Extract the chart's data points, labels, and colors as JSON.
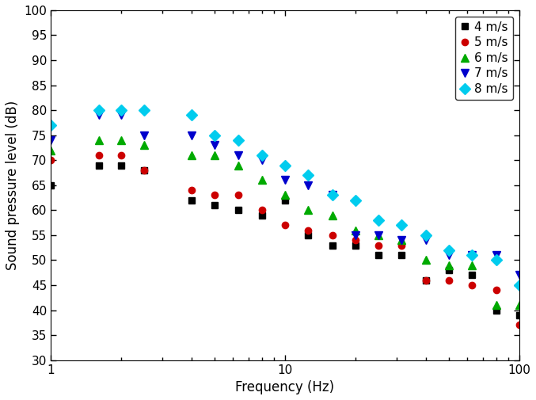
{
  "xlabel": "Frequency (Hz)",
  "ylabel": "Sound pressure level (dB)",
  "xlim": [
    1,
    100
  ],
  "ylim": [
    30,
    100
  ],
  "yticks": [
    30,
    35,
    40,
    45,
    50,
    55,
    60,
    65,
    70,
    75,
    80,
    85,
    90,
    95,
    100
  ],
  "series": [
    {
      "label": "4 m/s",
      "color": "#000000",
      "marker": "s",
      "markersize": 6,
      "freq": [
        1,
        1.6,
        2,
        2.5,
        4,
        5,
        6.3,
        8,
        10,
        12.5,
        16,
        20,
        25,
        31.5,
        40,
        50,
        63,
        80,
        100
      ],
      "spl": [
        65,
        69,
        69,
        68,
        62,
        61,
        60,
        59,
        62,
        55,
        53,
        53,
        51,
        51,
        46,
        48,
        47,
        40,
        39
      ]
    },
    {
      "label": "5 m/s",
      "color": "#cc0000",
      "marker": "o",
      "markersize": 6,
      "freq": [
        1,
        1.6,
        2,
        2.5,
        4,
        5,
        6.3,
        8,
        10,
        12.5,
        16,
        20,
        25,
        31.5,
        40,
        50,
        63,
        80,
        100
      ],
      "spl": [
        70,
        71,
        71,
        68,
        64,
        63,
        63,
        60,
        57,
        56,
        55,
        54,
        53,
        53,
        46,
        46,
        45,
        44,
        37
      ]
    },
    {
      "label": "6 m/s",
      "color": "#00aa00",
      "marker": "^",
      "markersize": 7,
      "freq": [
        1,
        1.6,
        2,
        2.5,
        4,
        5,
        6.3,
        8,
        10,
        12.5,
        16,
        20,
        25,
        31.5,
        40,
        50,
        63,
        80,
        100
      ],
      "spl": [
        72,
        74,
        74,
        73,
        71,
        71,
        69,
        66,
        63,
        60,
        59,
        56,
        55,
        54,
        50,
        49,
        49,
        41,
        41
      ]
    },
    {
      "label": "7 m/s",
      "color": "#0000cc",
      "marker": "v",
      "markersize": 7,
      "freq": [
        1,
        1.6,
        2,
        2.5,
        4,
        5,
        6.3,
        8,
        10,
        12.5,
        16,
        20,
        25,
        31.5,
        40,
        50,
        63,
        80,
        100
      ],
      "spl": [
        74,
        79,
        79,
        75,
        75,
        73,
        71,
        70,
        66,
        65,
        63,
        55,
        55,
        54,
        54,
        51,
        51,
        51,
        47
      ]
    },
    {
      "label": "8 m/s",
      "color": "#00ccee",
      "marker": "D",
      "markersize": 7,
      "freq": [
        1,
        1.6,
        2,
        2.5,
        4,
        5,
        6.3,
        8,
        10,
        12.5,
        16,
        20,
        25,
        31.5,
        40,
        50,
        63,
        80,
        100
      ],
      "spl": [
        77,
        80,
        80,
        80,
        79,
        75,
        74,
        71,
        69,
        67,
        63,
        62,
        58,
        57,
        55,
        52,
        51,
        50,
        45
      ]
    }
  ],
  "legend_loc": "upper right",
  "background_color": "#ffffff"
}
